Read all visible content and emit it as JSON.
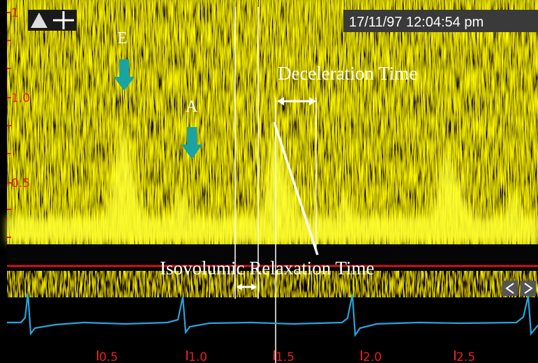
{
  "header": {
    "timestamp": "17/11/97 12:04:54 pm"
  },
  "annotations": {
    "e_wave": "E",
    "a_wave": "A",
    "deceleration": "Deceleration Time",
    "ivrt": "Isovolumic Relaxation Time"
  },
  "velocity_labels": [
    "1",
    "1.0",
    "0.5"
  ],
  "time_labels": [
    "0.5",
    "1.0",
    "1.5",
    "2.0",
    "2.5"
  ]
}
